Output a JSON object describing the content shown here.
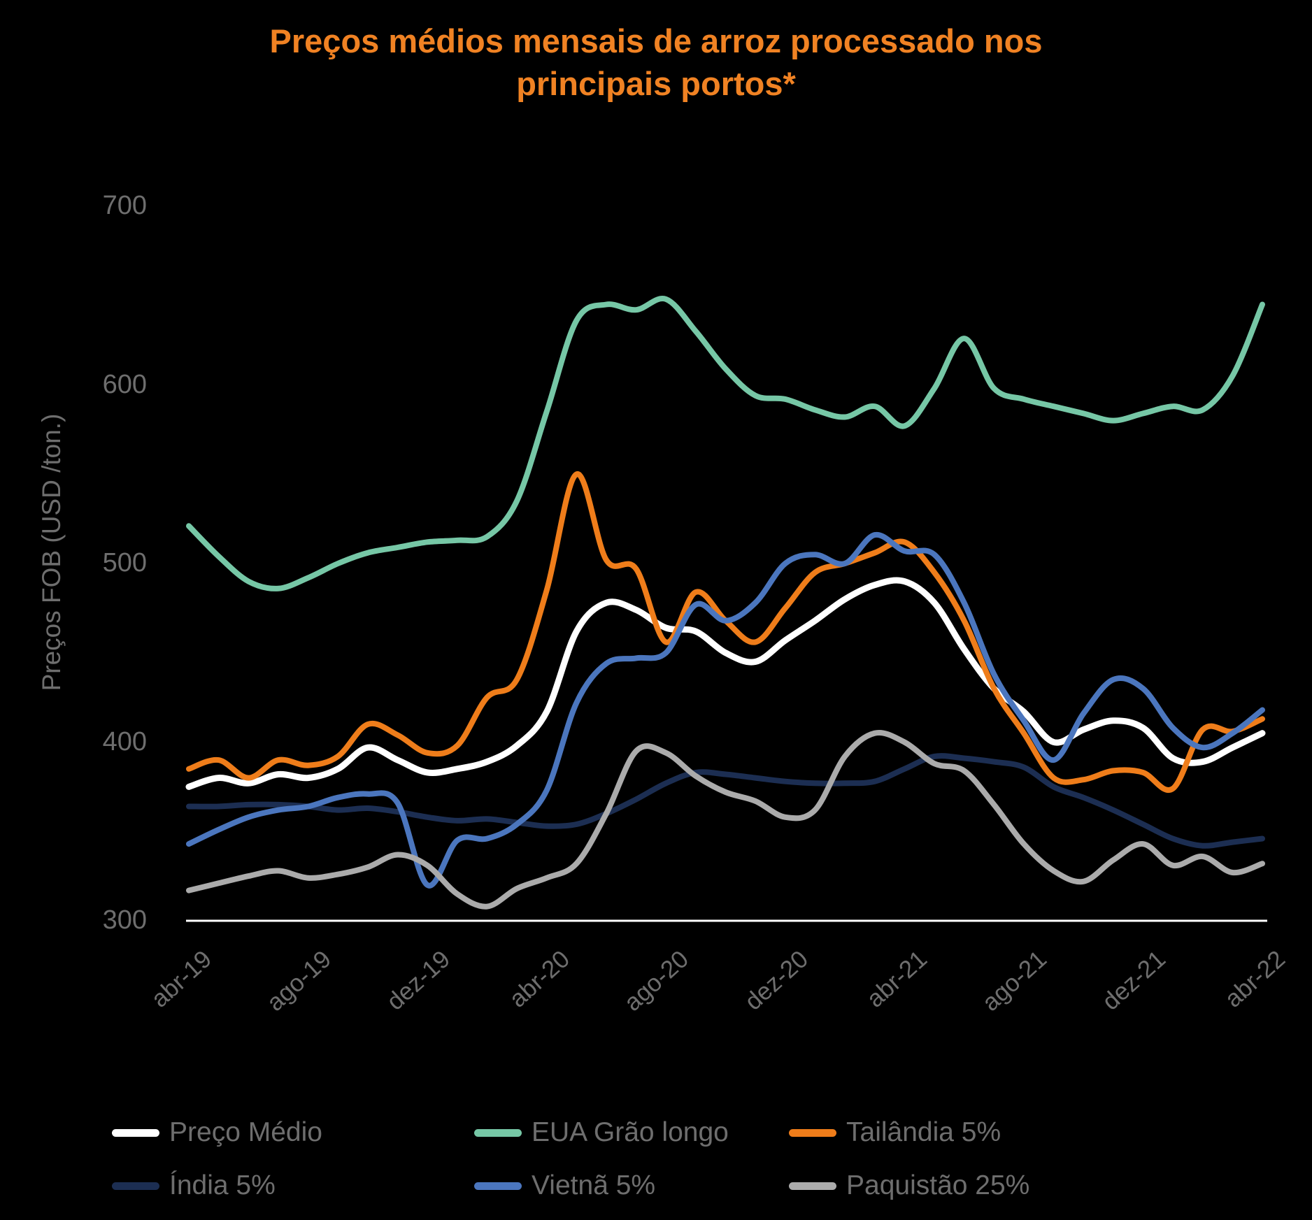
{
  "title": "Preços médios mensais de arroz processado nos principais portos*",
  "y_axis": {
    "title": "Preços FOB (USD /ton.)",
    "tick_labels": [
      "700",
      "600",
      "500",
      "400",
      "300"
    ]
  },
  "x_axis": {
    "tick_labels": [
      "abr-19",
      "ago-19",
      "dez-19",
      "abr-20",
      "ago-20",
      "dez-20",
      "abr-21",
      "ago-21",
      "dez-21",
      "abr-22"
    ]
  },
  "colors": {
    "background": "#000000",
    "title_text": "#F08223",
    "axis_text": "#6e6e6e",
    "axis_line": "#FFFFFF"
  },
  "legend": [
    {
      "label": "Preço Médio",
      "slug": "preco-medio",
      "color": "#FFFFFF"
    },
    {
      "label": "EUA Grão longo",
      "slug": "eua-grao-longo",
      "color": "#76C7A6"
    },
    {
      "label": "Tailândia 5%",
      "slug": "tailandia-5",
      "color": "#EF7D1A"
    },
    {
      "label": "Índia 5%",
      "slug": "india-5",
      "color": "#1C2E52"
    },
    {
      "label": "Vietnã 5%",
      "slug": "vietna-5",
      "color": "#4B76BE"
    },
    {
      "label": "Paquistão 25%",
      "slug": "paquistao-25",
      "color": "#ABABAB"
    }
  ],
  "chart_data": {
    "type": "line",
    "title": "Preços médios mensais de arroz processado nos principais portos*",
    "xlabel": "",
    "ylabel": "Preços FOB (USD /ton.)",
    "ylim": [
      300,
      700
    ],
    "grid": false,
    "legend_position": "bottom",
    "x": [
      "abr-19",
      "mai-19",
      "jun-19",
      "jul-19",
      "ago-19",
      "set-19",
      "out-19",
      "nov-19",
      "dez-19",
      "jan-20",
      "fev-20",
      "mar-20",
      "abr-20",
      "mai-20",
      "jun-20",
      "jul-20",
      "ago-20",
      "set-20",
      "out-20",
      "nov-20",
      "dez-20",
      "jan-21",
      "fev-21",
      "mar-21",
      "abr-21",
      "mai-21",
      "jun-21",
      "jul-21",
      "ago-21",
      "set-21",
      "out-21",
      "nov-21",
      "dez-21",
      "jan-22",
      "fev-22",
      "mar-22",
      "abr-22"
    ],
    "x_tick_every": 4,
    "series": [
      {
        "name": "Preço Médio",
        "slug": "preco-medio",
        "color": "#FFFFFF",
        "width": 9,
        "values": [
          375,
          380,
          377,
          382,
          380,
          385,
          397,
          390,
          383,
          385,
          389,
          398,
          417,
          462,
          478,
          474,
          464,
          462,
          450,
          445,
          457,
          468,
          480,
          488,
          490,
          478,
          452,
          430,
          417,
          400,
          407,
          412,
          408,
          391,
          389,
          397,
          405
        ]
      },
      {
        "name": "EUA Grão longo",
        "slug": "eua-grao-longo",
        "color": "#76C7A6",
        "width": 8,
        "values": [
          521,
          504,
          490,
          486,
          492,
          500,
          506,
          509,
          512,
          513,
          515,
          535,
          585,
          636,
          645,
          642,
          648,
          630,
          609,
          594,
          592,
          586,
          582,
          588,
          577,
          598,
          626,
          598,
          592,
          588,
          584,
          580,
          584,
          588,
          586,
          605,
          645
        ]
      },
      {
        "name": "Tailândia 5%",
        "slug": "tailandia-5",
        "color": "#EF7D1A",
        "width": 8,
        "values": [
          385,
          390,
          380,
          390,
          387,
          392,
          410,
          404,
          394,
          398,
          425,
          435,
          485,
          550,
          502,
          497,
          456,
          484,
          468,
          456,
          475,
          495,
          500,
          506,
          512,
          495,
          468,
          430,
          405,
          380,
          379,
          384,
          383,
          374,
          407,
          406,
          413
        ]
      },
      {
        "name": "Índia 5%",
        "slug": "india-5",
        "color": "#1C2E52",
        "width": 8,
        "values": [
          364,
          364,
          365,
          365,
          364,
          362,
          363,
          361,
          358,
          356,
          357,
          355,
          353,
          354,
          360,
          368,
          377,
          383,
          382,
          380,
          378,
          377,
          377,
          378,
          385,
          392,
          391,
          389,
          386,
          375,
          369,
          362,
          354,
          346,
          342,
          344,
          346
        ]
      },
      {
        "name": "Vietnã 5%",
        "slug": "vietna-5",
        "color": "#4B76BE",
        "width": 8,
        "values": [
          343,
          351,
          358,
          362,
          364,
          369,
          371,
          366,
          320,
          345,
          346,
          354,
          373,
          422,
          444,
          447,
          450,
          477,
          468,
          478,
          500,
          505,
          500,
          516,
          507,
          505,
          478,
          438,
          412,
          390,
          416,
          435,
          430,
          408,
          397,
          405,
          418
        ]
      },
      {
        "name": "Paquistão 25%",
        "slug": "paquistao-25",
        "color": "#ABABAB",
        "width": 8,
        "values": [
          317,
          321,
          325,
          328,
          324,
          326,
          330,
          337,
          331,
          315,
          308,
          318,
          324,
          332,
          360,
          395,
          394,
          381,
          372,
          367,
          358,
          362,
          392,
          405,
          400,
          388,
          384,
          365,
          343,
          328,
          322,
          334,
          343,
          331,
          336,
          327,
          332
        ]
      }
    ]
  }
}
